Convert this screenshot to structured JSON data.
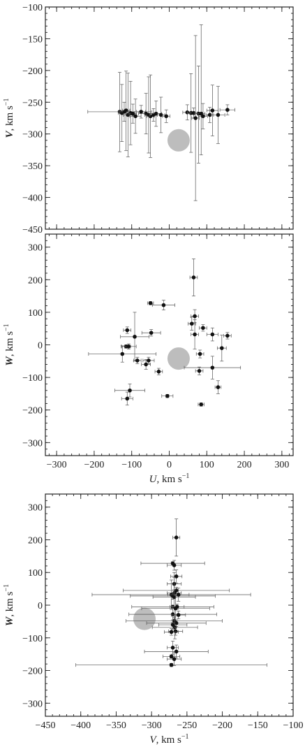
{
  "chart_data": [
    {
      "type": "scatter",
      "xlim": [
        -330,
        330
      ],
      "ylim": [
        -450,
        -100
      ],
      "xticks": [
        -300,
        -200,
        -100,
        0,
        100,
        200,
        300
      ],
      "show_xtick_labels": false,
      "yticks": [
        -100,
        -150,
        -200,
        -250,
        -300,
        -350,
        -400,
        -450
      ],
      "xlabel": "",
      "ylabel": "V, km s",
      "ylabel_exp": "−1",
      "marker": {
        "x": 25,
        "y": -310,
        "color": "#bdbdbd"
      },
      "points": [
        {
          "x": -132,
          "y": -265,
          "xerr": 85,
          "yerr": [
            63,
            62
          ]
        },
        {
          "x": -126,
          "y": -267,
          "xerr": 10,
          "yerr": [
            45,
            45
          ]
        },
        {
          "x": -120,
          "y": -265,
          "xerr": 12,
          "yerr": [
            15,
            15
          ]
        },
        {
          "x": -115,
          "y": -263,
          "xerr": 10,
          "yerr": [
            63,
            62
          ]
        },
        {
          "x": -110,
          "y": -270,
          "xerr": 12,
          "yerr": [
            66,
            66
          ]
        },
        {
          "x": -103,
          "y": -267,
          "xerr": 10,
          "yerr": [
            50,
            50
          ]
        },
        {
          "x": -97,
          "y": -268,
          "xerr": 10,
          "yerr": [
            15,
            15
          ]
        },
        {
          "x": -90,
          "y": -272,
          "xerr": 15,
          "yerr": [
            27,
            27
          ]
        },
        {
          "x": -75,
          "y": -265,
          "xerr": 12,
          "yerr": [
            10,
            10
          ]
        },
        {
          "x": -62,
          "y": -268,
          "xerr": 20,
          "yerr": [
            32,
            32
          ]
        },
        {
          "x": -55,
          "y": -270,
          "xerr": 10,
          "yerr": [
            60,
            60
          ]
        },
        {
          "x": -50,
          "y": -272,
          "xerr": 10,
          "yerr": [
            65,
            65
          ]
        },
        {
          "x": -42,
          "y": -270,
          "xerr": 10,
          "yerr": [
            10,
            10
          ]
        },
        {
          "x": -35,
          "y": -268,
          "xerr": 15,
          "yerr": [
            20,
            20
          ]
        },
        {
          "x": -22,
          "y": -270,
          "xerr": 10,
          "yerr": [
            28,
            28
          ]
        },
        {
          "x": -8,
          "y": -272,
          "xerr": 10,
          "yerr": [
            10,
            10
          ]
        },
        {
          "x": 48,
          "y": -266,
          "xerr": 12,
          "yerr": [
            12,
            12
          ]
        },
        {
          "x": 58,
          "y": -267,
          "xerr": 10,
          "yerr": [
            62,
            62
          ]
        },
        {
          "x": 65,
          "y": -267,
          "xerr": 10,
          "yerr": [
            8,
            8
          ]
        },
        {
          "x": 70,
          "y": -275,
          "xerr": 10,
          "yerr": [
            130,
            130
          ]
        },
        {
          "x": 78,
          "y": -268,
          "xerr": 10,
          "yerr": [
            78,
            75
          ]
        },
        {
          "x": 85,
          "y": -268,
          "xerr": 10,
          "yerr": [
            65,
            140
          ]
        },
        {
          "x": 90,
          "y": -272,
          "xerr": 12,
          "yerr": [
            20,
            20
          ]
        },
        {
          "x": 108,
          "y": -270,
          "xerr": 10,
          "yerr": [
            12,
            12
          ]
        },
        {
          "x": 115,
          "y": -263,
          "xerr": 15,
          "yerr": [
            40,
            40
          ]
        },
        {
          "x": 130,
          "y": -270,
          "xerr": 18,
          "yerr": [
            45,
            45
          ]
        },
        {
          "x": 155,
          "y": -262,
          "xerr": 20,
          "yerr": [
            8,
            8
          ]
        }
      ]
    },
    {
      "type": "scatter",
      "xlim": [
        -330,
        330
      ],
      "ylim": [
        -340,
        340
      ],
      "xticks": [
        -300,
        -200,
        -100,
        0,
        100,
        200,
        300
      ],
      "show_xtick_labels": true,
      "yticks": [
        300,
        200,
        100,
        0,
        -100,
        -200,
        -300
      ],
      "xlabel": "U, km s",
      "xlabel_exp": "−1",
      "ylabel": "W, km s",
      "ylabel_exp": "−1",
      "marker": {
        "x": 25,
        "y": -42,
        "color": "#bdbdbd"
      },
      "points": [
        {
          "x": 65,
          "y": 207,
          "xerr": 10,
          "yerr": [
            57,
            57
          ]
        },
        {
          "x": -50,
          "y": 128,
          "xerr": 8,
          "yerr": [
            5,
            5
          ]
        },
        {
          "x": -15,
          "y": 122,
          "xerr": 30,
          "yerr": [
            15,
            15
          ]
        },
        {
          "x": 68,
          "y": 88,
          "xerr": 10,
          "yerr": [
            20,
            20
          ]
        },
        {
          "x": 60,
          "y": 65,
          "xerr": 10,
          "yerr": [
            20,
            20
          ]
        },
        {
          "x": -112,
          "y": 45,
          "xerr": 10,
          "yerr": [
            10,
            10
          ]
        },
        {
          "x": -48,
          "y": 37,
          "xerr": 25,
          "yerr": [
            10,
            10
          ]
        },
        {
          "x": 68,
          "y": 32,
          "xerr": 10,
          "yerr": [
            45,
            45
          ]
        },
        {
          "x": 90,
          "y": 52,
          "xerr": 10,
          "yerr": [
            10,
            10
          ]
        },
        {
          "x": 115,
          "y": 32,
          "xerr": 15,
          "yerr": [
            20,
            20
          ]
        },
        {
          "x": 155,
          "y": 28,
          "xerr": 10,
          "yerr": [
            10,
            10
          ]
        },
        {
          "x": -92,
          "y": 25,
          "xerr": 38,
          "yerr": [
            75,
            75
          ]
        },
        {
          "x": -115,
          "y": -5,
          "xerr": 12,
          "yerr": [
            5,
            5
          ]
        },
        {
          "x": -108,
          "y": -5,
          "xerr": 20,
          "yerr": [
            8,
            8
          ]
        },
        {
          "x": 140,
          "y": -10,
          "xerr": 12,
          "yerr": [
            40,
            40
          ]
        },
        {
          "x": -125,
          "y": -28,
          "xerr": 90,
          "yerr": [
            25,
            25
          ]
        },
        {
          "x": 82,
          "y": -28,
          "xerr": 10,
          "yerr": [
            12,
            12
          ]
        },
        {
          "x": -85,
          "y": -48,
          "xerr": 10,
          "yerr": [
            10,
            10
          ]
        },
        {
          "x": -55,
          "y": -48,
          "xerr": 15,
          "yerr": [
            10,
            10
          ]
        },
        {
          "x": -62,
          "y": -60,
          "xerr": 12,
          "yerr": [
            15,
            15
          ]
        },
        {
          "x": 115,
          "y": -70,
          "xerr": 75,
          "yerr": [
            35,
            35
          ]
        },
        {
          "x": 80,
          "y": -80,
          "xerr": 10,
          "yerr": [
            12,
            12
          ]
        },
        {
          "x": -28,
          "y": -82,
          "xerr": 10,
          "yerr": [
            10,
            10
          ]
        },
        {
          "x": 130,
          "y": -130,
          "xerr": 8,
          "yerr": [
            20,
            20
          ]
        },
        {
          "x": -105,
          "y": -140,
          "xerr": 40,
          "yerr": [
            20,
            20
          ]
        },
        {
          "x": -5,
          "y": -157,
          "xerr": 15,
          "yerr": [
            5,
            5
          ]
        },
        {
          "x": -112,
          "y": -165,
          "xerr": 15,
          "yerr": [
            20,
            20
          ]
        },
        {
          "x": 85,
          "y": -183,
          "xerr": 8,
          "yerr": [
            5,
            5
          ]
        }
      ]
    },
    {
      "type": "scatter",
      "xlim": [
        -450,
        -100
      ],
      "ylim": [
        -340,
        340
      ],
      "xticks": [
        -450,
        -400,
        -350,
        -300,
        -250,
        -200,
        -150,
        -100
      ],
      "show_xtick_labels": true,
      "yticks": [
        300,
        200,
        100,
        0,
        -100,
        -200,
        -300
      ],
      "xlabel": "V, km s",
      "xlabel_exp": "−1",
      "ylabel": "W, km s",
      "ylabel_exp": "−1",
      "marker": {
        "x": -310,
        "y": -42,
        "color": "#bdbdbd"
      },
      "points": [
        {
          "x": -265,
          "y": 207,
          "xerr": 5,
          "yerr": [
            57,
            57
          ]
        },
        {
          "x": -270,
          "y": 128,
          "xerr": 45,
          "yerr": [
            5,
            5
          ]
        },
        {
          "x": -268,
          "y": 122,
          "xerr": 10,
          "yerr": [
            15,
            15
          ]
        },
        {
          "x": -265,
          "y": 88,
          "xerr": 8,
          "yerr": [
            20,
            20
          ]
        },
        {
          "x": -268,
          "y": 65,
          "xerr": 10,
          "yerr": [
            20,
            20
          ]
        },
        {
          "x": -265,
          "y": 45,
          "xerr": 75,
          "yerr": [
            10,
            10
          ]
        },
        {
          "x": -268,
          "y": 37,
          "xerr": 10,
          "yerr": [
            10,
            10
          ]
        },
        {
          "x": -272,
          "y": 32,
          "xerr": 112,
          "yerr": [
            45,
            45
          ]
        },
        {
          "x": -270,
          "y": 28,
          "xerr": 60,
          "yerr": [
            10,
            10
          ]
        },
        {
          "x": -262,
          "y": 32,
          "xerr": 15,
          "yerr": [
            20,
            20
          ]
        },
        {
          "x": -268,
          "y": 25,
          "xerr": 30,
          "yerr": [
            75,
            75
          ]
        },
        {
          "x": -270,
          "y": -5,
          "xerr": 58,
          "yerr": [
            5,
            5
          ]
        },
        {
          "x": -264,
          "y": -5,
          "xerr": 10,
          "yerr": [
            8,
            8
          ]
        },
        {
          "x": -266,
          "y": -10,
          "xerr": 48,
          "yerr": [
            40,
            40
          ]
        },
        {
          "x": -270,
          "y": -28,
          "xerr": 62,
          "yerr": [
            25,
            25
          ]
        },
        {
          "x": -262,
          "y": -30,
          "xerr": 10,
          "yerr": [
            12,
            12
          ]
        },
        {
          "x": -268,
          "y": -48,
          "xerr": 68,
          "yerr": [
            10,
            10
          ]
        },
        {
          "x": -265,
          "y": -55,
          "xerr": 42,
          "yerr": [
            10,
            10
          ]
        },
        {
          "x": -270,
          "y": -60,
          "xerr": 20,
          "yerr": [
            15,
            15
          ]
        },
        {
          "x": -267,
          "y": -68,
          "xerr": 32,
          "yerr": [
            35,
            35
          ]
        },
        {
          "x": -266,
          "y": -80,
          "xerr": 10,
          "yerr": [
            12,
            12
          ]
        },
        {
          "x": -272,
          "y": -82,
          "xerr": 10,
          "yerr": [
            10,
            10
          ]
        },
        {
          "x": -270,
          "y": -130,
          "xerr": 8,
          "yerr": [
            20,
            20
          ]
        },
        {
          "x": -265,
          "y": -142,
          "xerr": 45,
          "yerr": [
            20,
            20
          ]
        },
        {
          "x": -272,
          "y": -157,
          "xerr": 12,
          "yerr": [
            5,
            5
          ]
        },
        {
          "x": -268,
          "y": -165,
          "xerr": 10,
          "yerr": [
            20,
            20
          ]
        },
        {
          "x": -272,
          "y": -183,
          "xerr": 135,
          "yerr": [
            5,
            5
          ]
        }
      ]
    }
  ]
}
